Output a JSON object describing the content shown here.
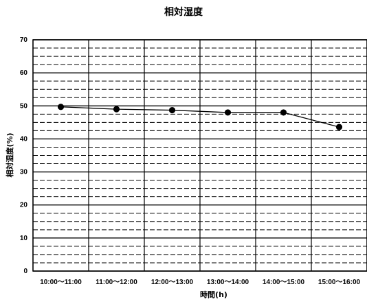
{
  "chart_data": {
    "type": "line",
    "title": "相対湿度",
    "xlabel": "時間(h)",
    "ylabel": "相対湿度(%)",
    "categories": [
      "10:00～11:00",
      "11:00～12:00",
      "12:00～13:00",
      "13:00～14:00",
      "14:00～15:00",
      "15:00～16:00"
    ],
    "series": [
      {
        "values": [
          49.7,
          49.0,
          48.7,
          48.0,
          48.0,
          43.6
        ]
      }
    ],
    "ylim": [
      0,
      70
    ],
    "yticks": [
      0,
      10,
      20,
      30,
      40,
      50,
      60,
      70
    ],
    "grid": true,
    "legend": "none",
    "colors": {
      "line": "#000000",
      "grid_major": "#000000",
      "grid_minor": "#000000",
      "marker": "#000000"
    }
  }
}
